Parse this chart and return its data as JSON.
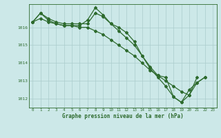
{
  "xlabel": "Graphe pression niveau de la mer (hPa)",
  "x_ticks": [
    0,
    1,
    2,
    3,
    4,
    5,
    6,
    7,
    8,
    9,
    10,
    11,
    12,
    13,
    14,
    15,
    16,
    17,
    18,
    19,
    20,
    21,
    22,
    23
  ],
  "ylim": [
    1011.5,
    1017.3
  ],
  "yticks": [
    1012,
    1013,
    1014,
    1015,
    1016
  ],
  "line_color": "#2d6a2d",
  "bg_color": "#cce8e8",
  "grid_color": "#aacccc",
  "series": [
    [
      1016.3,
      1016.8,
      1016.5,
      1016.3,
      1016.2,
      1016.2,
      1016.2,
      1016.2,
      1016.8,
      1016.6,
      1016.2,
      1016.0,
      1015.7,
      1015.2,
      1014.4,
      1013.8,
      1013.3,
      1013.2,
      1012.1,
      1011.8,
      1012.5,
      1012.9,
      1013.2,
      null
    ],
    [
      1016.3,
      1016.8,
      1016.4,
      1016.2,
      1016.1,
      1016.1,
      1016.1,
      1016.4,
      1017.1,
      1016.7,
      1016.2,
      1015.8,
      1015.4,
      1015.0,
      1014.4,
      1013.7,
      1013.2,
      1012.7,
      1012.1,
      1011.8,
      1012.2,
      1012.9,
      1013.2,
      null
    ],
    [
      1016.3,
      1016.5,
      1016.3,
      1016.2,
      1016.1,
      1016.1,
      1016.0,
      1016.0,
      1015.8,
      1015.6,
      1015.3,
      1015.0,
      1014.7,
      1014.4,
      1014.0,
      1013.6,
      1013.3,
      1013.0,
      1012.7,
      1012.4,
      1012.2,
      1013.2,
      null,
      null
    ]
  ]
}
